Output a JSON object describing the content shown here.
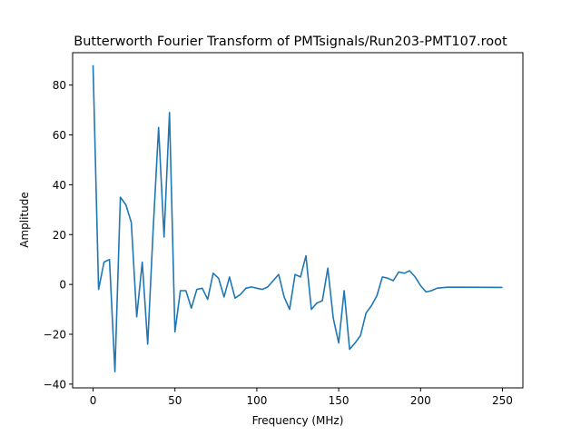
{
  "chart_data": {
    "type": "line",
    "title": "Butterworth Fourier Transform of PMTsignals/Run203-PMT107.root",
    "xlabel": "Frequency (MHz)",
    "ylabel": "Amplitude",
    "xlim": [
      -12.5,
      262.5
    ],
    "ylim": [
      -41.5,
      93
    ],
    "xticks": [
      0,
      50,
      100,
      150,
      200,
      250
    ],
    "yticks": [
      -40,
      -20,
      0,
      20,
      40,
      60,
      80
    ],
    "xtick_labels": [
      "0",
      "50",
      "100",
      "150",
      "200",
      "250"
    ],
    "ytick_labels": [
      "−40",
      "−20",
      "0",
      "20",
      "40",
      "60",
      "80"
    ],
    "grid": false,
    "legend": "none",
    "color": "#1f77b4",
    "series": [
      {
        "x": [
          0,
          3.33,
          6.67,
          10,
          13.33,
          16.67,
          20,
          23.33,
          26.67,
          30,
          33.33,
          36.67,
          40,
          43.33,
          46.67,
          50,
          53.33,
          56.67,
          60,
          63.33,
          66.67,
          70,
          73.33,
          76.67,
          80,
          83.33,
          86.67,
          90,
          93.33,
          96.67,
          100,
          103.33,
          106.67,
          110,
          113.33,
          116.67,
          120,
          123.33,
          126.67,
          130,
          133.33,
          136.67,
          140,
          143.33,
          146.67,
          150,
          153.33,
          156.67,
          160,
          163.33,
          166.67,
          170,
          173.33,
          176.67,
          180,
          183.33,
          186.67,
          190,
          193.33,
          196.67,
          200,
          203.33,
          206.67,
          210,
          213.33,
          216.67,
          220,
          250
        ],
        "y": [
          88,
          -2,
          9,
          10,
          -35,
          35,
          32,
          25,
          -13,
          9,
          -24,
          22,
          63,
          19,
          69,
          -19,
          -2.5,
          -2.5,
          -9.5,
          -2,
          -1.5,
          -6,
          4.5,
          2.5,
          -5,
          3,
          -5.5,
          -4,
          -1.5,
          -1,
          -1.5,
          -2,
          -1,
          1.5,
          4,
          -5,
          -10,
          4,
          3,
          11.5,
          -10,
          -7.5,
          -6.5,
          6.5,
          -13.5,
          -23.5,
          -2.5,
          -26,
          -23.5,
          -20.5,
          -11.5,
          -8.5,
          -4.5,
          3,
          2.5,
          1.5,
          5,
          4.5,
          5.5,
          3,
          -0.5,
          -3,
          -2.5,
          -1.5,
          -1.3,
          -1.1,
          -1.1,
          -1.2
        ]
      }
    ]
  }
}
